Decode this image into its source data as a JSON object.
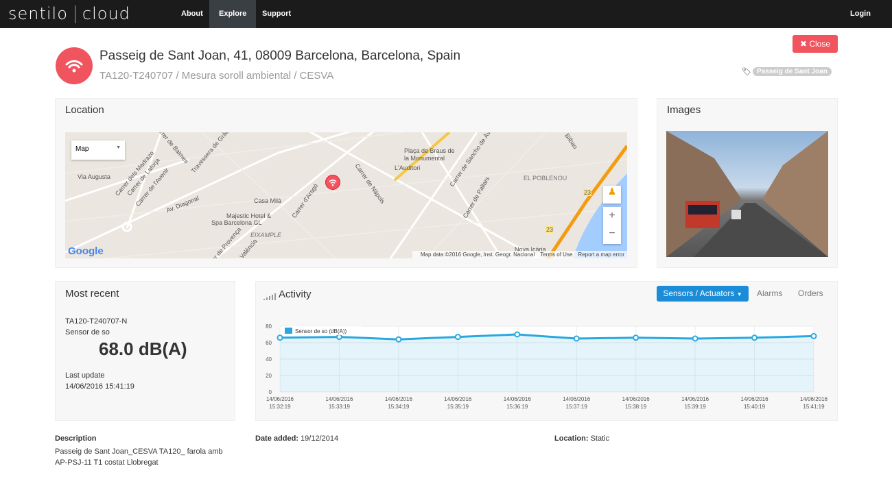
{
  "nav": {
    "logo_left": "sentilo",
    "logo_right": "cloud",
    "items": [
      "About",
      "Explore",
      "Support"
    ],
    "login": "Login"
  },
  "header": {
    "title": "Passeig de Sant Joan, 41, 08009 Barcelona, Barcelona, Spain",
    "subtitle": "TA120-T240707 / Mesura soroll ambiental / CESVA",
    "close": "✖ Close",
    "tag": "Passeig de Sant Joan",
    "icon": "wifi-signal-icon",
    "accent": "#f0545f"
  },
  "location": {
    "title": "Location",
    "map_type": "Map",
    "labels": [
      "Carrer de Balmes",
      "Travessera de Gràcia",
      "Via Augusta",
      "Carrer dels Madrazo",
      "Carrer de Laforja",
      "Carrer de l'Avenir",
      "Av. Diagonal",
      "Casa Milà",
      "Majestic Hotel &",
      "Spa Barcelona GL",
      "Carrer d'Aragó",
      "Carrer de Nàpols",
      "Plaça de Braus de",
      "la Monumental",
      "L'Auditori",
      "Carrer de Sancho de Àvila",
      "Carrer de Pallars",
      "EL POBLENOU",
      "EIXAMPLE",
      "Carrer de Provença",
      "València",
      "Bilbao",
      "Nova Icària",
      "23",
      "23"
    ],
    "attribution": "Map data ©2016 Google, Inst. Geogr. Nacional",
    "terms": "Terms of Use",
    "report": "Report a map error",
    "google": "Google"
  },
  "images": {
    "title": "Images"
  },
  "most_recent": {
    "title": "Most recent",
    "sensor_id": "TA120-T240707-N",
    "sensor_name": "Sensor de so",
    "value": "68.0 dB(A)",
    "last_update_label": "Last update",
    "last_update": "14/06/2016 15:41:19"
  },
  "activity": {
    "title": "Activity",
    "tabs": [
      "Sensors / Actuators",
      "Alarms",
      "Orders"
    ]
  },
  "chart_data": {
    "type": "area",
    "series": [
      {
        "name": "Sensor de so (dB(A))",
        "values": [
          66,
          67,
          64,
          67,
          70,
          65,
          66,
          65,
          66,
          68
        ]
      }
    ],
    "x": [
      "14/06/2016 15:32:19",
      "14/06/2016 15:33:19",
      "14/06/2016 15:34:19",
      "14/06/2016 15:35:19",
      "14/06/2016 15:36:19",
      "14/06/2016 15:37:19",
      "14/06/2016 15:38:19",
      "14/06/2016 15:39:19",
      "14/06/2016 15:40:19",
      "14/06/2016 15:41:19"
    ],
    "ylim": [
      0,
      80
    ],
    "yticks": [
      0,
      20,
      40,
      60,
      80
    ],
    "grid": true,
    "legend": "top-left",
    "color": "#29a8e0"
  },
  "footer": {
    "description_label": "Description",
    "description": "Passeig de Sant Joan_CESVA TA120_ farola amb AP-PSJ-11 T1 costat Llobregat",
    "date_label": "Date added:",
    "date": "19/12/2014",
    "location_label": "Location:",
    "location": "Static"
  }
}
